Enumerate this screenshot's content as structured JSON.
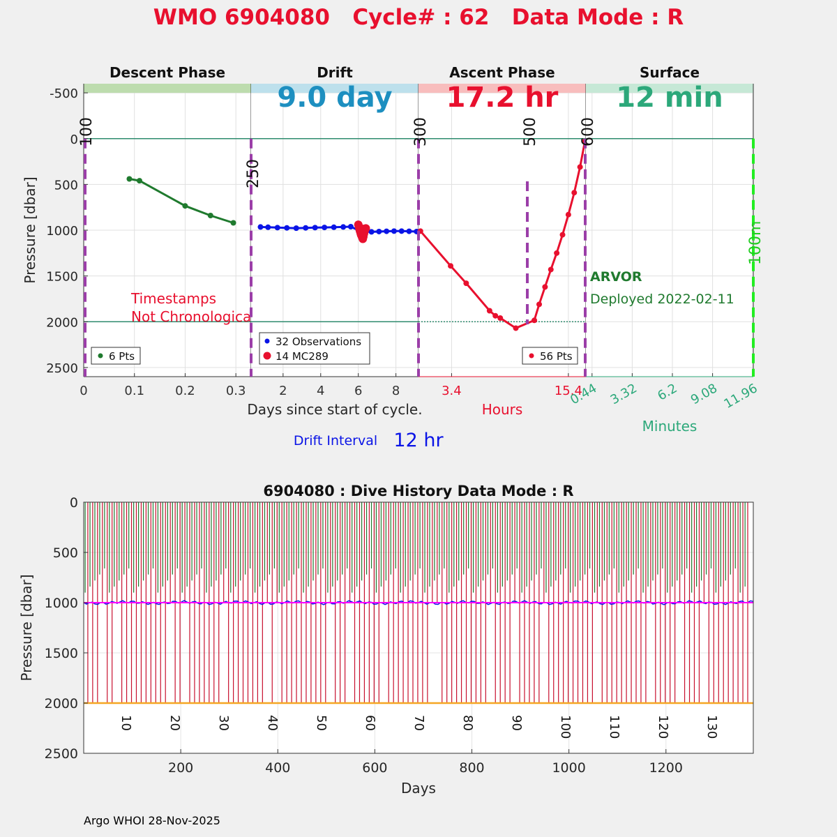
{
  "title": "WMO 6904080   Cycle# : 62   Data Mode : R",
  "colors": {
    "title": "#e8102e",
    "descent": "#1f7a2e",
    "drift": "#0a14e6",
    "ascent": "#e8102e",
    "surface_text": "#2ca87a",
    "phase_line": "#9b3ea8",
    "dive_history_drift": "#ff00ff",
    "dive_history_park": "#f5a623",
    "dive_history_ascent": "#c8102e",
    "dive_history_descent": "#1f7a2e"
  },
  "chart_data": [
    {
      "type": "line",
      "name": "cycle-profile",
      "ylabel": "Pressure [dbar]",
      "ylim": [
        2600,
        -600
      ],
      "yticks": [
        -500,
        0,
        500,
        1000,
        1500,
        2000,
        2500
      ],
      "panels": [
        {
          "name": "descent",
          "header": "Descent Phase",
          "duration_label": "",
          "header_color": "#bddcae",
          "duration_color": "#1f7a2e",
          "xlim": [
            0,
            0.33
          ],
          "xticks": [
            0,
            0.1,
            0.2,
            0.3
          ],
          "xtick_labels": [
            "0",
            "0.1",
            "0.2",
            "0.3"
          ],
          "tick_color": "#333333",
          "rotated_ticks": [
            {
              "label": "100",
              "at": "start"
            },
            {
              "label": "250",
              "at": "end"
            }
          ],
          "series": [
            {
              "name": "descent",
              "color": "#1f7a2e",
              "x": [
                0.09,
                0.11,
                0.2,
                0.25,
                0.295
              ],
              "y": [
                440,
                460,
                735,
                840,
                920
              ]
            }
          ],
          "legend": [
            "6 Pts"
          ],
          "annotation": [
            "Timestamps",
            "Not Chronological"
          ]
        },
        {
          "name": "drift",
          "header": "Drift",
          "duration_label": "9.0 day",
          "header_color": "#bde0ec",
          "duration_color": "#1d8fc0",
          "xlim": [
            0.3,
            9.2
          ],
          "xticks": [
            2,
            4,
            6,
            8
          ],
          "xtick_labels": [
            "2",
            "4",
            "6",
            "8"
          ],
          "tick_color": "#333333",
          "series": [
            {
              "name": "32 Observations",
              "color": "#0a14e6",
              "x": [
                0.8,
                1.2,
                1.7,
                2.2,
                2.7,
                3.2,
                3.7,
                4.2,
                4.7,
                5.2,
                5.6,
                6.0,
                6.3,
                6.7,
                7.1,
                7.5,
                7.9,
                8.3,
                8.7,
                9.1
              ],
              "y": [
                965,
                968,
                972,
                975,
                978,
                975,
                972,
                970,
                968,
                965,
                962,
                1000,
                1015,
                1018,
                1015,
                1012,
                1010,
                1010,
                1012,
                1015
              ]
            },
            {
              "name": "14 MC289",
              "color": "#e8102e",
              "x": [
                6.0,
                6.03,
                6.06,
                6.09,
                6.12,
                6.15,
                6.18,
                6.21,
                6.24,
                6.27,
                6.3,
                6.33,
                6.36,
                6.4
              ],
              "y": [
                940,
                960,
                985,
                1010,
                1030,
                1050,
                1065,
                1080,
                1095,
                1070,
                1040,
                1015,
                995,
                980
              ]
            }
          ],
          "legend": [
            "32 Observations",
            "14 MC289"
          ]
        },
        {
          "name": "ascent",
          "header": "Ascent Phase",
          "duration_label": "17.2 hr",
          "header_color": "#f8bdbd",
          "duration_color": "#e8102e",
          "xlim": [
            0,
            17.2
          ],
          "xticks": [
            3.4,
            15.4
          ],
          "xtick_labels": [
            "3.4",
            "15.4"
          ],
          "tick_color": "#e8102e",
          "xlabel": "Hours",
          "rotated_ticks": [
            {
              "label": "300",
              "at": "start"
            },
            {
              "label": "500",
              "at": "mid"
            },
            {
              "label": "600",
              "at": "end"
            }
          ],
          "series": [
            {
              "name": "ascent",
              "color": "#e8102e",
              "x": [
                0.2,
                3.3,
                4.9,
                7.3,
                7.9,
                8.4,
                10.0,
                11.9,
                12.4,
                13.0,
                13.6,
                14.2,
                14.8,
                15.4,
                16.0,
                16.6,
                17.1
              ],
              "y": [
                1010,
                1390,
                1580,
                1880,
                1935,
                1960,
                2070,
                1985,
                1810,
                1620,
                1430,
                1250,
                1050,
                830,
                590,
                310,
                30
              ]
            }
          ],
          "legend": [
            "56 Pts"
          ],
          "reference_line": 2000
        },
        {
          "name": "surface",
          "header": "Surface",
          "duration_label": "12 min",
          "header_color": "#c6e8d6",
          "duration_color": "#2ca87a",
          "xlim": [
            0,
            12
          ],
          "xticks": [
            0.44,
            3.32,
            6.2,
            9.08,
            11.96
          ],
          "xtick_labels": [
            "0.44",
            "3.32",
            "6.2",
            "9.08",
            "11.96"
          ],
          "tick_color": "#2ca87a",
          "xlabel": "Minutes",
          "rotated_ticks": [
            {
              "label": "100m",
              "at": "end"
            }
          ],
          "float_model": "ARVOR",
          "deployed": "Deployed 2022-02-11"
        }
      ],
      "xlabel": "Days since start of cycle.",
      "drift_interval_label": "Drift Interval",
      "drift_interval_value": "12 hr"
    },
    {
      "type": "line",
      "name": "dive-history",
      "title": "6904080 : Dive History      Data Mode : R",
      "xlabel": "Days",
      "ylabel": "Pressure [dbar]",
      "xlim": [
        0,
        1380
      ],
      "ylim": [
        2500,
        0
      ],
      "xticks": [
        200,
        400,
        600,
        800,
        1000,
        1200
      ],
      "yticks": [
        0,
        500,
        1000,
        1500,
        2000,
        2500
      ],
      "cycle_count": 137,
      "cycle_labels": [
        "10",
        "20",
        "30",
        "40",
        "50",
        "60",
        "70",
        "80",
        "90",
        "100",
        "110",
        "120",
        "130"
      ],
      "drift_pressure": 1000,
      "park_pressure": 2000
    }
  ],
  "footer": "Argo WHOI 28-Nov-2025"
}
